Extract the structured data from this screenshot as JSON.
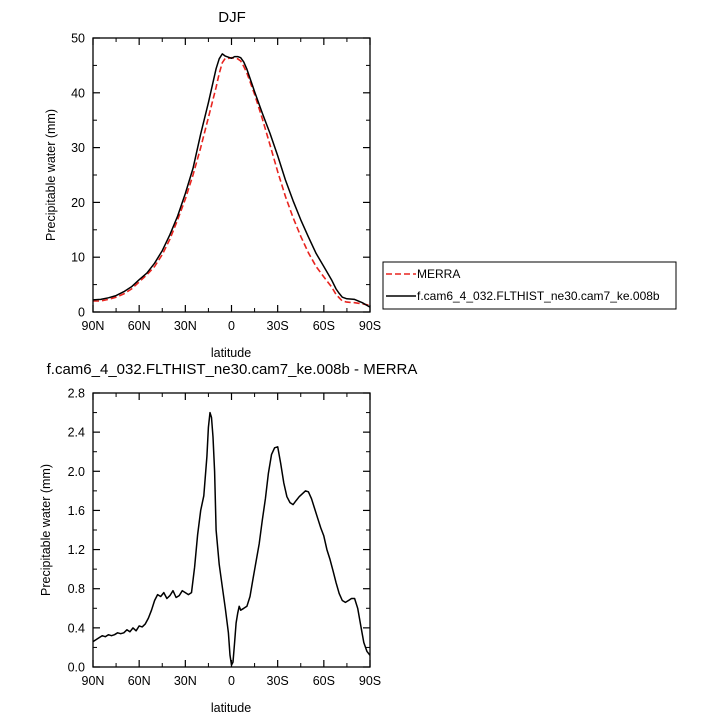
{
  "chart_data": [
    {
      "type": "line",
      "title": "DJF",
      "xlabel": "latitude",
      "ylabel": "Precipitable water (mm)",
      "xlim": [
        90,
        -90
      ],
      "ylim": [
        0,
        50
      ],
      "xticks": [
        90,
        60,
        30,
        0,
        -30,
        -60,
        -90
      ],
      "xticklabels": [
        "90N",
        "60N",
        "30N",
        "0",
        "30S",
        "60S",
        "90S"
      ],
      "yticks": [
        0,
        10,
        20,
        30,
        40,
        50
      ],
      "yticklabels": [
        "0",
        "10",
        "20",
        "30",
        "40",
        "50"
      ],
      "legend": {
        "placement": "right"
      },
      "series": [
        {
          "name": "MERRA",
          "color": "#e8241f",
          "dash": true,
          "x": [
            90,
            85,
            80,
            75,
            70,
            65,
            60,
            55,
            50,
            45,
            40,
            35,
            30,
            25,
            20,
            15,
            10,
            8,
            6,
            4,
            2,
            0,
            -2,
            -4,
            -6,
            -8,
            -10,
            -15,
            -20,
            -25,
            -30,
            -35,
            -40,
            -45,
            -50,
            -55,
            -60,
            -65,
            -68,
            -70,
            -72,
            -75,
            -80,
            -85,
            -90
          ],
          "y": [
            2,
            2,
            2.3,
            2.7,
            3.3,
            4.2,
            5.5,
            6.8,
            8.3,
            10.5,
            13.3,
            16.8,
            20.6,
            25,
            30,
            35.5,
            41,
            43.5,
            45.5,
            46.3,
            46.3,
            46.4,
            46.3,
            46.2,
            45.8,
            44.8,
            43.6,
            39.7,
            35.3,
            30.5,
            25.6,
            21.1,
            17.2,
            13.8,
            10.8,
            8.3,
            6.4,
            4.6,
            3.2,
            2.6,
            2,
            1.8,
            1.7,
            1.5,
            1.2
          ]
        },
        {
          "name": "f.cam6_4_032.FLTHIST_ne30.cam7_ke.008b",
          "color": "#000000",
          "dash": false,
          "x": [
            90,
            85,
            80,
            75,
            70,
            65,
            60,
            55,
            50,
            45,
            40,
            35,
            30,
            25,
            20,
            15,
            10,
            8,
            6,
            4,
            2,
            0,
            -2,
            -4,
            -6,
            -8,
            -10,
            -15,
            -20,
            -25,
            -30,
            -35,
            -40,
            -45,
            -50,
            -55,
            -60,
            -65,
            -68,
            -70,
            -72,
            -75,
            -80,
            -85,
            -90
          ],
          "y": [
            2.2,
            2.3,
            2.6,
            3.0,
            3.7,
            4.6,
            5.9,
            7.1,
            8.9,
            11.2,
            14.1,
            17.5,
            21.6,
            26.2,
            32.5,
            38.2,
            44.4,
            46.2,
            47.1,
            46.7,
            46.5,
            46.3,
            46.6,
            46.6,
            46.4,
            45.6,
            44.3,
            40.2,
            36.3,
            32.6,
            28.5,
            24.1,
            20.3,
            16.8,
            13.7,
            10.7,
            8.3,
            5.9,
            4.2,
            3.4,
            2.7,
            2.4,
            2.3,
            1.7,
            0.9
          ]
        }
      ]
    },
    {
      "type": "line",
      "title": "f.cam6_4_032.FLTHIST_ne30.cam7_ke.008b - MERRA",
      "xlabel": "latitude",
      "ylabel": "Precipitable water (mm)",
      "xlim": [
        90,
        -90
      ],
      "ylim": [
        0,
        2.8
      ],
      "xticks": [
        90,
        60,
        30,
        0,
        -30,
        -60,
        -90
      ],
      "xticklabels": [
        "90N",
        "60N",
        "30N",
        "0",
        "30S",
        "60S",
        "90S"
      ],
      "yticks": [
        0,
        0.4,
        0.8,
        1.2,
        1.6,
        2.0,
        2.4,
        2.8
      ],
      "yticklabels": [
        "0.0",
        "0.4",
        "0.8",
        "1.2",
        "1.6",
        "2.0",
        "2.4",
        "2.8"
      ],
      "series": [
        {
          "color": "#000000",
          "x": [
            90,
            88,
            86,
            84,
            82,
            80,
            78,
            76,
            74,
            72,
            70,
            68,
            66,
            64,
            62,
            60,
            58,
            56,
            54,
            52,
            50,
            48,
            46,
            44,
            42,
            40,
            38,
            36,
            34,
            32,
            30,
            28,
            26,
            24,
            22,
            20,
            18,
            16,
            15,
            14,
            13,
            12,
            11,
            10,
            8,
            6,
            4,
            2,
            1,
            0,
            -1,
            -2,
            -3,
            -4,
            -5,
            -6,
            -8,
            -10,
            -12,
            -14,
            -16,
            -18,
            -20,
            -22,
            -24,
            -26,
            -28,
            -30,
            -32,
            -34,
            -36,
            -38,
            -40,
            -42,
            -44,
            -46,
            -48,
            -50,
            -52,
            -54,
            -56,
            -58,
            -60,
            -62,
            -64,
            -66,
            -68,
            -70,
            -72,
            -74,
            -76,
            -78,
            -80,
            -82,
            -84,
            -86,
            -88,
            -90
          ],
          "y": [
            0.26,
            0.28,
            0.3,
            0.32,
            0.31,
            0.33,
            0.32,
            0.33,
            0.35,
            0.34,
            0.35,
            0.38,
            0.36,
            0.4,
            0.37,
            0.42,
            0.41,
            0.44,
            0.5,
            0.58,
            0.68,
            0.74,
            0.72,
            0.76,
            0.7,
            0.73,
            0.78,
            0.71,
            0.73,
            0.78,
            0.76,
            0.74,
            0.76,
            1.02,
            1.35,
            1.6,
            1.75,
            2.15,
            2.45,
            2.6,
            2.55,
            2.35,
            2.0,
            1.4,
            1.05,
            0.82,
            0.6,
            0.35,
            0.12,
            0.02,
            0.05,
            0.25,
            0.45,
            0.55,
            0.62,
            0.58,
            0.6,
            0.62,
            0.72,
            0.9,
            1.08,
            1.26,
            1.5,
            1.72,
            1.98,
            2.17,
            2.24,
            2.25,
            2.08,
            1.88,
            1.74,
            1.68,
            1.66,
            1.7,
            1.74,
            1.77,
            1.8,
            1.79,
            1.72,
            1.62,
            1.52,
            1.42,
            1.34,
            1.2,
            1.1,
            0.98,
            0.86,
            0.75,
            0.68,
            0.66,
            0.68,
            0.7,
            0.7,
            0.6,
            0.42,
            0.25,
            0.16,
            0.12
          ]
        }
      ]
    }
  ]
}
